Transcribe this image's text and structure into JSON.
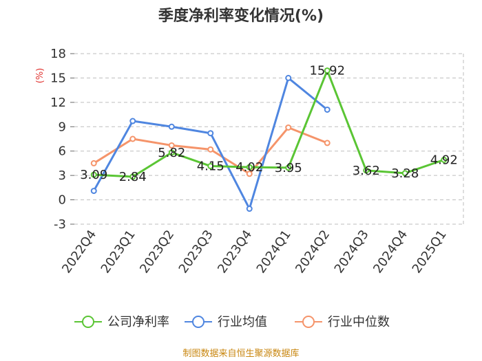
{
  "chart_data": {
    "type": "line",
    "title": "季度净利率变化情况(%)",
    "ylabel": "(%)",
    "ylim": [
      -3,
      18
    ],
    "yticks": [
      -3,
      0,
      3,
      6,
      9,
      12,
      15,
      18
    ],
    "categories": [
      "2022Q4",
      "2023Q1",
      "2023Q2",
      "2023Q3",
      "2023Q4",
      "2024Q1",
      "2024Q2",
      "2024Q3",
      "2024Q4",
      "2025Q1"
    ],
    "grid": true,
    "legend_position": "bottom",
    "series": [
      {
        "name": "公司净利率",
        "color": "#5ac534",
        "values": [
          3.09,
          2.84,
          5.82,
          4.15,
          4.02,
          3.95,
          15.92,
          3.62,
          3.28,
          4.92
        ],
        "labels": [
          "3.09",
          "2.84",
          "5.82",
          "4.15",
          "4.02",
          "3.95",
          "15.92",
          "3.62",
          "3.28",
          "4.92"
        ]
      },
      {
        "name": "行业均值",
        "color": "#4f86e0",
        "values": [
          1.1,
          9.7,
          9.0,
          8.2,
          -1.1,
          15.0,
          11.1,
          null,
          null,
          null
        ]
      },
      {
        "name": "行业中位数",
        "color": "#f5946a",
        "values": [
          4.5,
          7.5,
          6.7,
          6.2,
          3.2,
          8.9,
          7.0,
          null,
          null,
          null
        ]
      }
    ],
    "source": "制图数据来自恒生聚源数据库"
  }
}
